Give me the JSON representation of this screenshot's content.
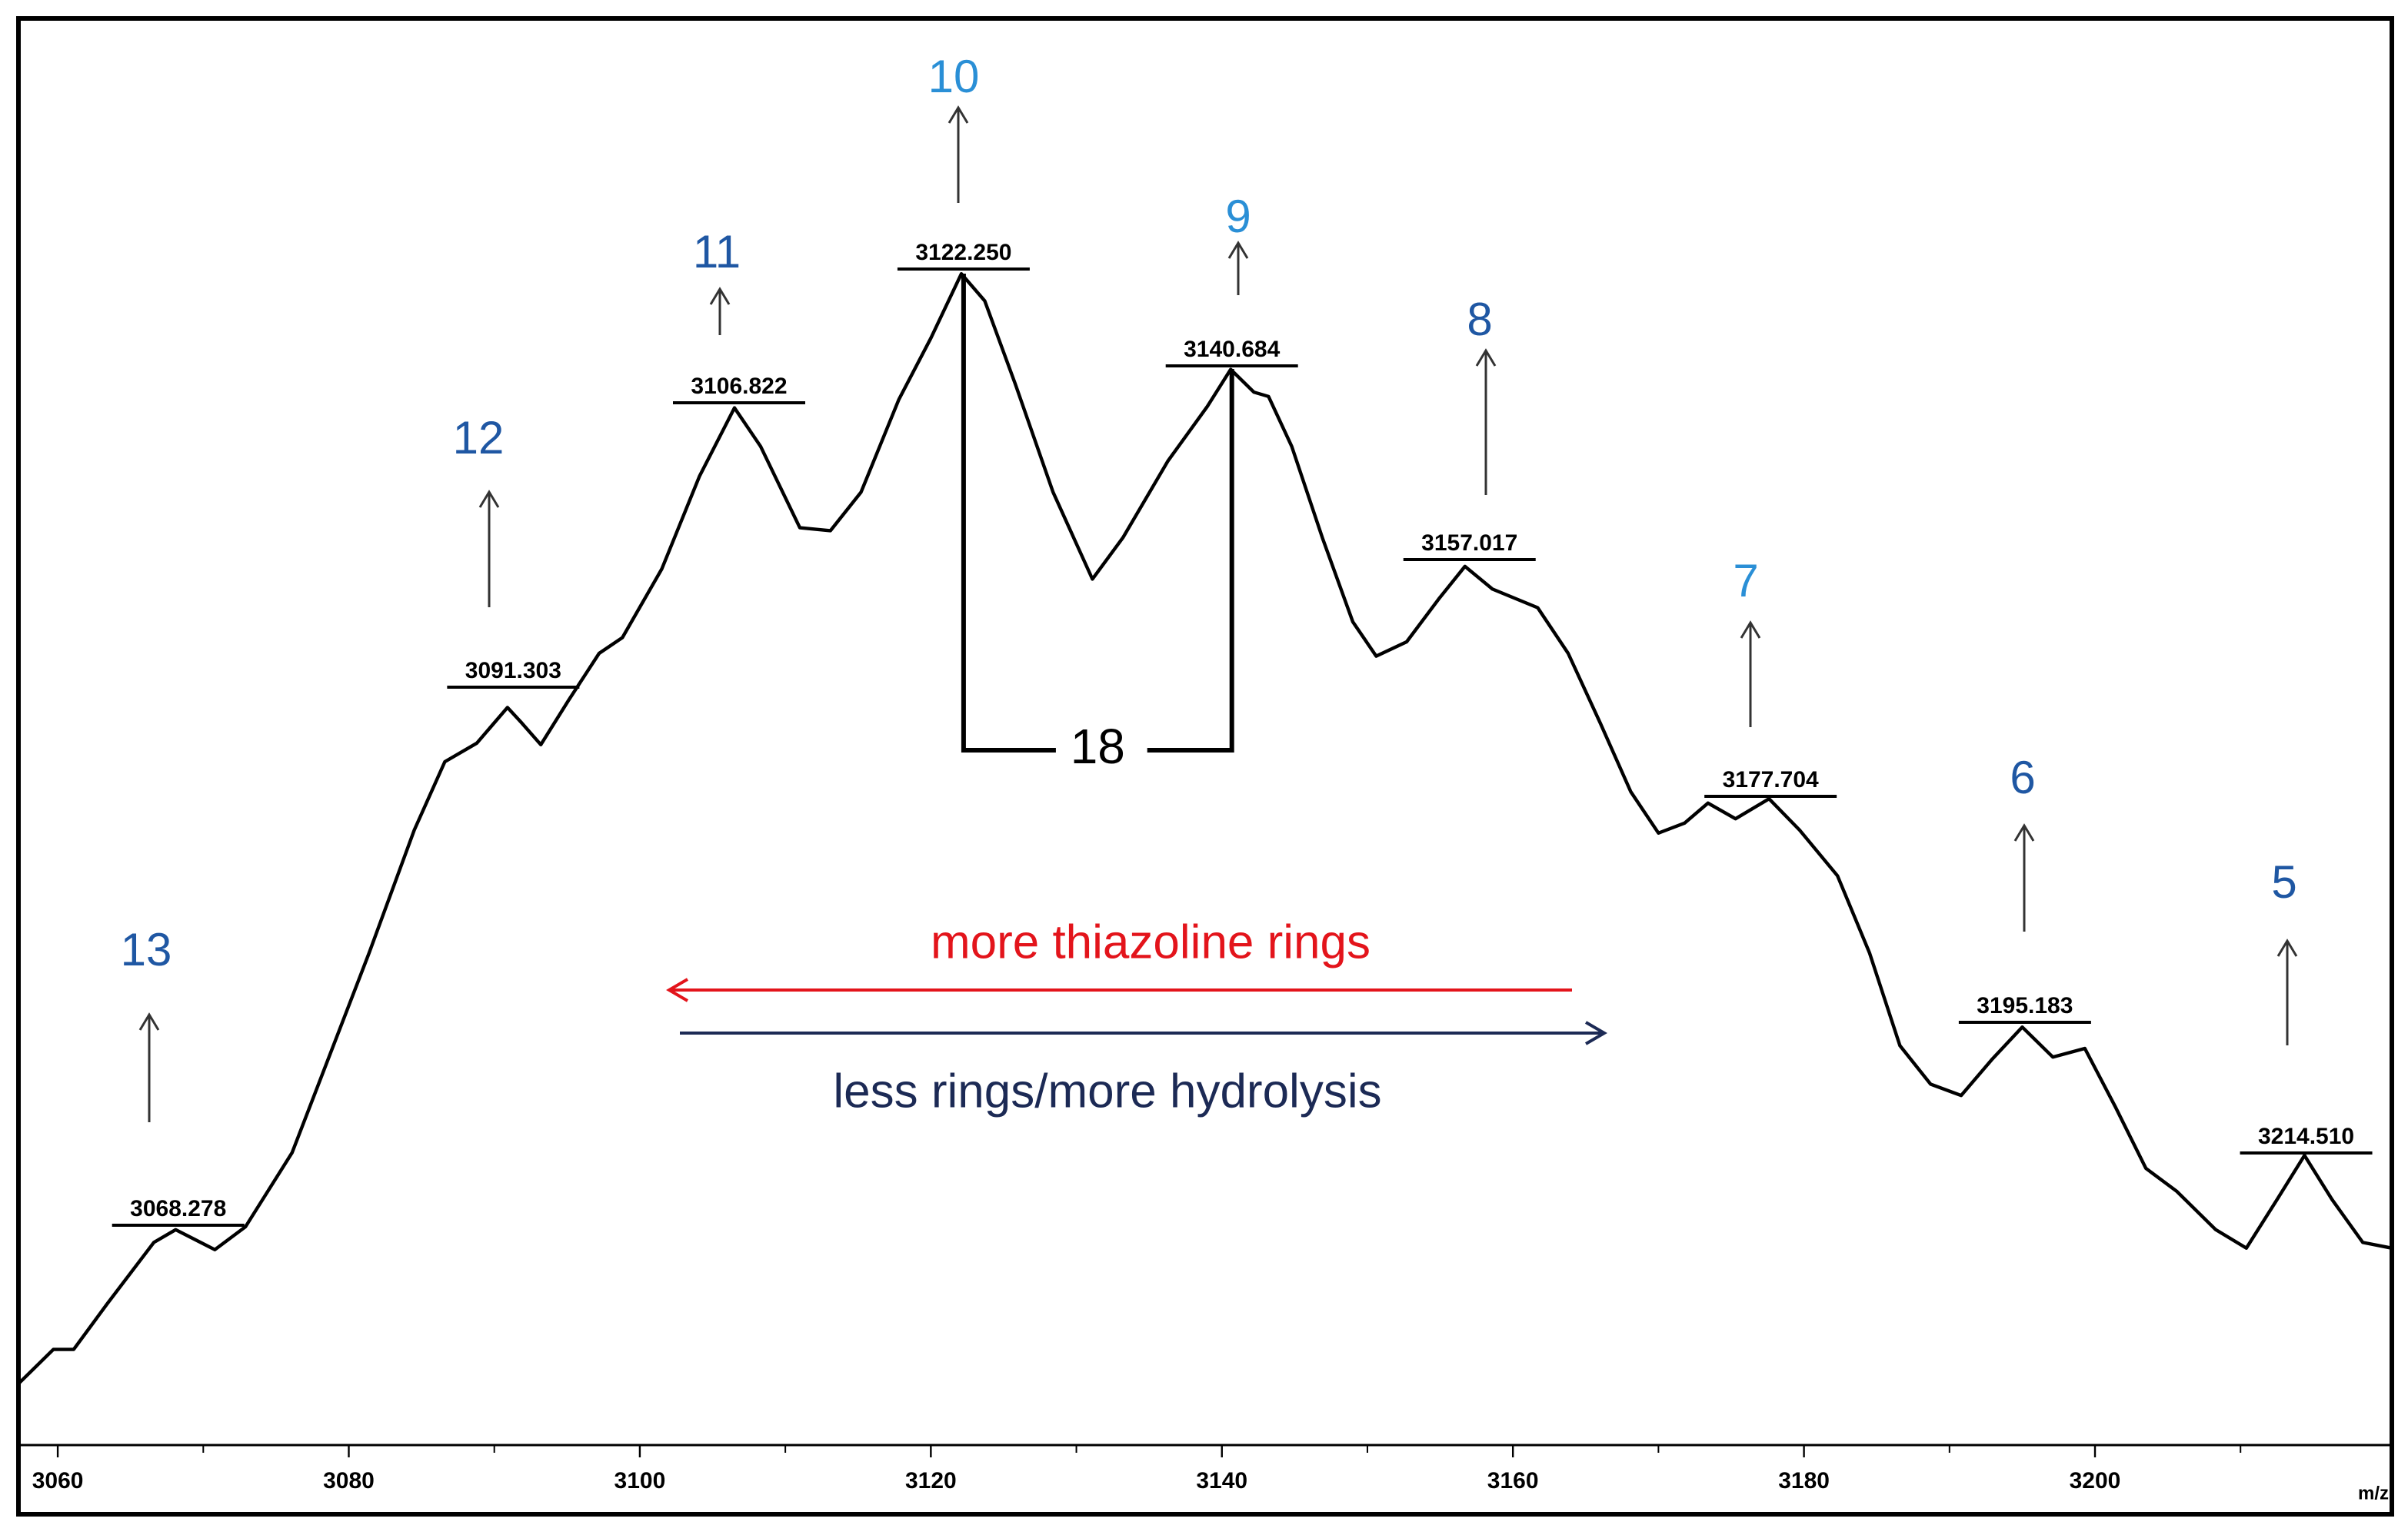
{
  "chart_data": {
    "type": "line",
    "x_label": "m/z",
    "color": "#000000",
    "x": [
      3057.3,
      3059.7,
      3061.1,
      3063.4,
      3066.6,
      3068.1,
      3070.8,
      3072.9,
      3076.1,
      3081.4,
      3084.5,
      3086.6,
      3088.8,
      3090.9,
      3091.9,
      3093.2,
      3095.1,
      3097.2,
      3098.8,
      3101.5,
      3104.1,
      3106.5,
      3108.3,
      3111.0,
      3113.1,
      3115.2,
      3117.8,
      3120.0,
      3122.1,
      3123.7,
      3125.8,
      3128.4,
      3131.1,
      3133.2,
      3136.3,
      3139.0,
      3140.6,
      3142.2,
      3143.2,
      3144.8,
      3146.9,
      3149.0,
      3150.6,
      3152.7,
      3154.9,
      3156.7,
      3158.6,
      3161.7,
      3163.8,
      3166.0,
      3168.1,
      3170.0,
      3171.8,
      3173.4,
      3175.3,
      3177.6,
      3179.7,
      3182.3,
      3184.5,
      3186.6,
      3188.7,
      3190.8,
      3192.9,
      3195.0,
      3197.1,
      3199.3,
      3201.4,
      3203.5,
      3205.6,
      3208.3,
      3210.4,
      3212.5,
      3214.4,
      3216.3,
      3218.4,
      3220.4
    ],
    "values": [
      4.3,
      6.7,
      6.7,
      9.9,
      14.2,
      15.1,
      13.7,
      15.3,
      20.5,
      34.5,
      43.1,
      47.9,
      49.2,
      51.7,
      50.6,
      49.1,
      52.2,
      55.5,
      56.6,
      61.4,
      67.9,
      72.7,
      70.0,
      64.3,
      64.1,
      66.8,
      73.3,
      77.6,
      82.1,
      80.2,
      74.4,
      66.8,
      60.7,
      63.6,
      69.0,
      72.8,
      75.4,
      73.8,
      73.5,
      70.0,
      63.6,
      57.7,
      55.3,
      56.3,
      59.3,
      61.6,
      60.0,
      58.7,
      55.5,
      50.6,
      45.8,
      42.9,
      43.6,
      45.0,
      43.9,
      45.3,
      43.1,
      39.9,
      34.5,
      28.0,
      25.3,
      24.5,
      27.0,
      29.3,
      27.2,
      27.8,
      23.7,
      19.4,
      17.8,
      15.1,
      13.8,
      17.2,
      20.3,
      17.2,
      14.2,
      13.8
    ],
    "xlim": [
      3057.3,
      3220.4
    ],
    "xticks": [
      3060,
      3080,
      3100,
      3120,
      3140,
      3160,
      3180,
      3200
    ],
    "xminor_ticks": [
      3070,
      3090,
      3110,
      3130,
      3150,
      3170,
      3190,
      3210
    ],
    "ylim": [
      0,
      100
    ],
    "peaks": [
      {
        "mz": {
          "value": 3068.278,
          "label": "3068.278"
        },
        "number": 13,
        "color": "#1f57a3"
      },
      {
        "mz": {
          "value": 3091.303,
          "label": "3091.303"
        },
        "number": 12,
        "color": "#1f57a3"
      },
      {
        "mz": {
          "value": 3106.822,
          "label": "3106.822"
        },
        "number": 11,
        "color": "#1f57a3"
      },
      {
        "mz": {
          "value": 3122.25,
          "label": "3122.250"
        },
        "number": 10,
        "color": "#2a8fd6"
      },
      {
        "mz": {
          "value": 3140.684,
          "label": "3140.684"
        },
        "number": 9,
        "color": "#2a8fd6"
      },
      {
        "mz": {
          "value": 3157.017,
          "label": "3157.017"
        },
        "number": 8,
        "color": "#1f57a3"
      },
      {
        "mz": {
          "value": 3177.704,
          "label": "3177.704"
        },
        "number": 7,
        "color": "#2a8fd6"
      },
      {
        "mz": {
          "value": 3195.183,
          "label": "3195.183"
        },
        "number": 6,
        "color": "#1f57a3"
      },
      {
        "mz": {
          "value": 3214.51,
          "label": "3214.510"
        },
        "number": 5,
        "color": "#1f57a3"
      }
    ],
    "spacing": 18,
    "direction_arrows": [
      {
        "text": "more thiazoline rings",
        "color": "#e3141b"
      },
      {
        "text": "less rings/more hydrolysis",
        "color": "#1c2a55"
      }
    ]
  }
}
